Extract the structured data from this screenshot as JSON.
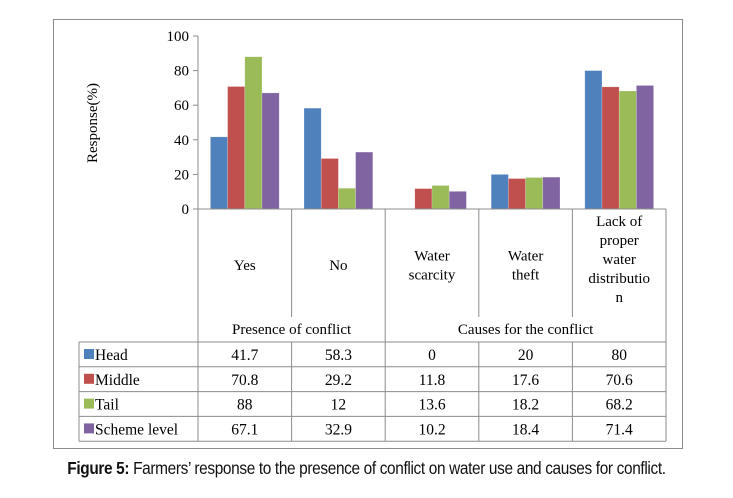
{
  "chart_data": {
    "type": "bar",
    "title": "",
    "xlabel": "",
    "ylabel": "Response(%)",
    "ylim": [
      0,
      100
    ],
    "yticks": [
      "0",
      "20",
      "40",
      "60",
      "80",
      "100"
    ],
    "grid": false,
    "legend": "data-table",
    "categories": [
      "Yes",
      "No",
      "Water scarcity",
      "Water theft",
      "Lack of proper water distribution"
    ],
    "category_lines": [
      [
        "Yes"
      ],
      [
        "No"
      ],
      [
        "Water",
        "scarcity"
      ],
      [
        "Water",
        "theft"
      ],
      [
        "Lack of",
        "proper",
        "water",
        "distributio",
        "n"
      ]
    ],
    "groups": [
      {
        "label": "Presence of conflict",
        "span": 2
      },
      {
        "label": "Causes for the  conflict",
        "span": 3
      }
    ],
    "series": [
      {
        "name": "Head",
        "color": "#4F81BD",
        "values": [
          41.7,
          58.3,
          0,
          20,
          80
        ],
        "labels": [
          "41.7",
          "58.3",
          "0",
          "20",
          "80"
        ]
      },
      {
        "name": "Middle",
        "color": "#C0504D",
        "values": [
          70.8,
          29.2,
          11.8,
          17.6,
          70.6
        ],
        "labels": [
          "70.8",
          "29.2",
          "11.8",
          "17.6",
          "70.6"
        ]
      },
      {
        "name": "Tail",
        "color": "#9BBB59",
        "values": [
          88,
          12,
          13.6,
          18.2,
          68.2
        ],
        "labels": [
          "88",
          "12",
          "13.6",
          "18.2",
          "68.2"
        ]
      },
      {
        "name": "Scheme level",
        "color": "#8064A2",
        "values": [
          67.1,
          32.9,
          10.2,
          18.4,
          71.4
        ],
        "labels": [
          "67.1",
          "32.9",
          "10.2",
          "18.4",
          "71.4"
        ]
      }
    ]
  },
  "caption": {
    "prefix": "Figure 5:",
    "text": " Farmers’ response to the presence of conflict on water use and causes for conflict."
  }
}
